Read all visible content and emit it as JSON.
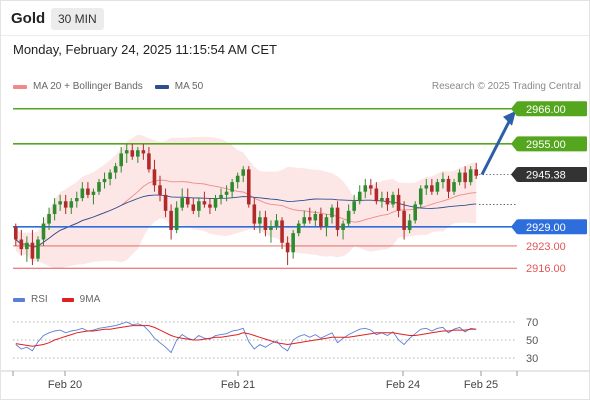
{
  "header": {
    "asset": "Gold",
    "timeframe": "30 MIN"
  },
  "timestamp": "Monday, February 24, 2025 11:15:54 AM CET",
  "legend": {
    "bb_label": "MA 20 + Bollinger Bands",
    "ma50_label": "MA 50",
    "bb_color": "#f08a8a",
    "ma50_color": "#2c4f8f"
  },
  "credit": "Research © 2025 Trading Central",
  "rsi_legend": {
    "rsi_label": "RSI",
    "ma9_label": "9MA",
    "rsi_color": "#5b7fd6",
    "ma9_color": "#e02020"
  },
  "colors": {
    "up": "#2e8b2e",
    "down": "#b02a2a",
    "resistance": "#55a61f",
    "pivot": "#2d6ddc",
    "support": "#e25757",
    "arrow": "#2c5fa8",
    "current_bg": "#333333"
  },
  "chart_data": {
    "type": "candlestick",
    "y_range": [
      2912,
      2970
    ],
    "x_labels": [
      "Feb 20",
      "Feb 21",
      "Feb 24",
      "Feb 25"
    ],
    "levels": [
      {
        "value": 2966.0,
        "label": "2966.00",
        "kind": "resistance"
      },
      {
        "value": 2955.0,
        "label": "2955.00",
        "kind": "resistance"
      },
      {
        "value": 2945.38,
        "label": "2945.38",
        "kind": "current"
      },
      {
        "value": 2929.0,
        "label": "2929.00",
        "kind": "pivot"
      },
      {
        "value": 2923.0,
        "label": "2923.00",
        "kind": "support"
      },
      {
        "value": 2916.0,
        "label": "2916.00",
        "kind": "support"
      }
    ],
    "ohlc": [
      [
        2929,
        2930,
        2923,
        2925
      ],
      [
        2925,
        2928,
        2920,
        2922
      ],
      [
        2922,
        2926,
        2918,
        2924
      ],
      [
        2924,
        2928,
        2917,
        2919
      ],
      [
        2919,
        2926,
        2918,
        2925
      ],
      [
        2925,
        2932,
        2923,
        2930
      ],
      [
        2930,
        2935,
        2928,
        2933
      ],
      [
        2933,
        2938,
        2931,
        2936
      ],
      [
        2936,
        2939,
        2934,
        2937
      ],
      [
        2937,
        2939,
        2933,
        2935
      ],
      [
        2935,
        2938,
        2933,
        2937
      ],
      [
        2937,
        2940,
        2935,
        2938
      ],
      [
        2938,
        2943,
        2937,
        2941
      ],
      [
        2941,
        2943,
        2938,
        2939
      ],
      [
        2939,
        2941,
        2936,
        2940
      ],
      [
        2940,
        2944,
        2939,
        2943
      ],
      [
        2943,
        2946,
        2941,
        2944
      ],
      [
        2944,
        2947,
        2942,
        2946
      ],
      [
        2946,
        2949,
        2944,
        2948
      ],
      [
        2948,
        2954,
        2946,
        2952
      ],
      [
        2952,
        2955,
        2949,
        2953
      ],
      [
        2953,
        2955,
        2950,
        2951
      ],
      [
        2951,
        2954,
        2949,
        2953
      ],
      [
        2953,
        2955,
        2950,
        2952
      ],
      [
        2952,
        2954,
        2946,
        2947
      ],
      [
        2947,
        2950,
        2940,
        2942
      ],
      [
        2942,
        2945,
        2937,
        2939
      ],
      [
        2939,
        2941,
        2932,
        2934
      ],
      [
        2934,
        2936,
        2925,
        2928
      ],
      [
        2928,
        2937,
        2927,
        2935
      ],
      [
        2935,
        2941,
        2934,
        2938
      ],
      [
        2938,
        2941,
        2935,
        2936
      ],
      [
        2936,
        2938,
        2933,
        2934
      ],
      [
        2934,
        2938,
        2932,
        2937
      ],
      [
        2937,
        2940,
        2935,
        2936
      ],
      [
        2936,
        2938,
        2933,
        2935
      ],
      [
        2935,
        2939,
        2934,
        2938
      ],
      [
        2938,
        2941,
        2936,
        2939
      ],
      [
        2939,
        2942,
        2937,
        2940
      ],
      [
        2940,
        2944,
        2938,
        2943
      ],
      [
        2943,
        2946,
        2941,
        2945
      ],
      [
        2945,
        2948,
        2943,
        2947
      ],
      [
        2947,
        2948,
        2935,
        2936
      ],
      [
        2936,
        2938,
        2928,
        2930
      ],
      [
        2930,
        2934,
        2927,
        2932
      ],
      [
        2932,
        2934,
        2926,
        2928
      ],
      [
        2928,
        2931,
        2924,
        2929
      ],
      [
        2929,
        2933,
        2928,
        2931
      ],
      [
        2931,
        2932,
        2922,
        2924
      ],
      [
        2924,
        2926,
        2917,
        2921
      ],
      [
        2921,
        2928,
        2919,
        2927
      ],
      [
        2927,
        2931,
        2926,
        2930
      ],
      [
        2930,
        2934,
        2929,
        2932
      ],
      [
        2932,
        2935,
        2930,
        2931
      ],
      [
        2931,
        2934,
        2929,
        2933
      ],
      [
        2933,
        2935,
        2928,
        2929
      ],
      [
        2929,
        2933,
        2926,
        2932
      ],
      [
        2932,
        2936,
        2930,
        2935
      ],
      [
        2935,
        2937,
        2926,
        2928
      ],
      [
        2928,
        2931,
        2925,
        2930
      ],
      [
        2930,
        2936,
        2929,
        2934
      ],
      [
        2934,
        2939,
        2933,
        2937
      ],
      [
        2937,
        2942,
        2936,
        2940
      ],
      [
        2940,
        2944,
        2938,
        2942
      ],
      [
        2942,
        2944,
        2939,
        2941
      ],
      [
        2941,
        2943,
        2936,
        2937
      ],
      [
        2937,
        2940,
        2935,
        2938
      ],
      [
        2938,
        2940,
        2934,
        2936
      ],
      [
        2936,
        2940,
        2935,
        2939
      ],
      [
        2939,
        2941,
        2932,
        2934
      ],
      [
        2934,
        2937,
        2925,
        2928
      ],
      [
        2928,
        2933,
        2927,
        2931
      ],
      [
        2931,
        2937,
        2930,
        2936
      ],
      [
        2936,
        2942,
        2935,
        2941
      ],
      [
        2941,
        2944,
        2939,
        2942
      ],
      [
        2942,
        2944,
        2939,
        2940
      ],
      [
        2940,
        2944,
        2939,
        2943
      ],
      [
        2943,
        2946,
        2941,
        2944
      ],
      [
        2944,
        2945,
        2938,
        2940
      ],
      [
        2940,
        2944,
        2939,
        2943
      ],
      [
        2943,
        2947,
        2942,
        2946
      ],
      [
        2946,
        2948,
        2941,
        2943
      ],
      [
        2943,
        2948,
        2942,
        2947
      ],
      [
        2947,
        2949,
        2944,
        2945
      ]
    ],
    "rsi": {
      "ticks": [
        70,
        50,
        30
      ],
      "y_range": [
        20,
        80
      ],
      "rsi_values": [
        45,
        40,
        42,
        38,
        48,
        55,
        58,
        60,
        61,
        58,
        60,
        61,
        63,
        60,
        61,
        63,
        64,
        65,
        66,
        68,
        70,
        67,
        68,
        66,
        60,
        52,
        47,
        42,
        36,
        50,
        56,
        52,
        50,
        55,
        52,
        51,
        55,
        56,
        57,
        60,
        61,
        63,
        48,
        40,
        45,
        42,
        46,
        49,
        42,
        38,
        50,
        54,
        56,
        53,
        56,
        52,
        55,
        58,
        47,
        52,
        56,
        59,
        62,
        63,
        61,
        56,
        58,
        55,
        59,
        50,
        45,
        52,
        57,
        62,
        63,
        60,
        63,
        64,
        58,
        62,
        64,
        59,
        63,
        62
      ],
      "ma9_values": [
        46,
        45,
        44,
        43,
        44,
        45,
        47,
        50,
        52,
        54,
        56,
        58,
        59,
        60,
        60,
        61,
        62,
        62,
        63,
        64,
        65,
        66,
        66,
        66,
        66,
        64,
        61,
        58,
        55,
        53,
        52,
        51,
        50,
        50,
        51,
        52,
        53,
        53,
        54,
        55,
        56,
        58,
        57,
        55,
        53,
        51,
        49,
        47,
        46,
        45,
        46,
        47,
        48,
        49,
        50,
        51,
        52,
        53,
        53,
        53,
        53,
        54,
        55,
        56,
        57,
        58,
        58,
        58,
        58,
        57,
        56,
        55,
        55,
        56,
        57,
        58,
        59,
        60,
        60,
        61,
        61,
        61,
        62,
        62
      ]
    }
  }
}
